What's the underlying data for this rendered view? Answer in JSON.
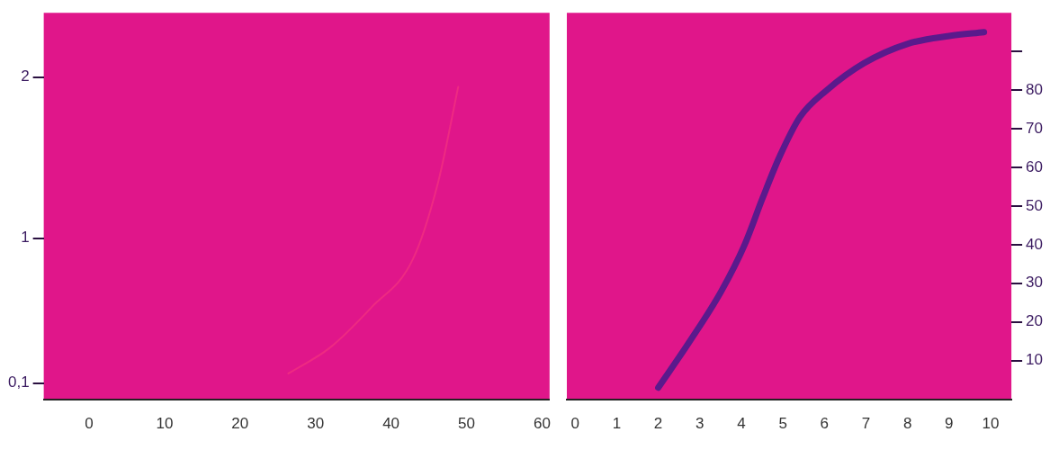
{
  "chart_data": [
    {
      "type": "line",
      "color": "#ee2a82",
      "xlim": [
        -6,
        61
      ],
      "xticks": [
        0,
        10,
        20,
        30,
        40,
        50,
        60
      ],
      "ylim": [
        0,
        2.4
      ],
      "yticks": [
        {
          "value": 0.1,
          "label": "0,1"
        },
        1,
        2
      ],
      "x": [
        26.4,
        31.9,
        37.4,
        42.9,
        46.2,
        48.9
      ],
      "values": [
        0.16,
        0.32,
        0.57,
        0.87,
        1.34,
        1.94
      ]
    },
    {
      "type": "line",
      "color": "#5a1a8c",
      "xlim": [
        -0.2,
        10.5
      ],
      "xticks": [
        0,
        1,
        2,
        3,
        4,
        5,
        6,
        7,
        8,
        9,
        10
      ],
      "ylim": [
        0,
        100
      ],
      "yticks": [
        10,
        20,
        30,
        40,
        50,
        60,
        70,
        80,
        {
          "value": 90,
          "label": null
        }
      ],
      "x": [
        2,
        2.76,
        3.52,
        4.08,
        4.51,
        4.93,
        5.41,
        6.06,
        6.96,
        8.01,
        9.0,
        9.84
      ],
      "values": [
        3,
        15,
        28,
        40,
        52,
        63,
        73,
        80,
        87,
        92,
        94,
        95
      ]
    }
  ]
}
